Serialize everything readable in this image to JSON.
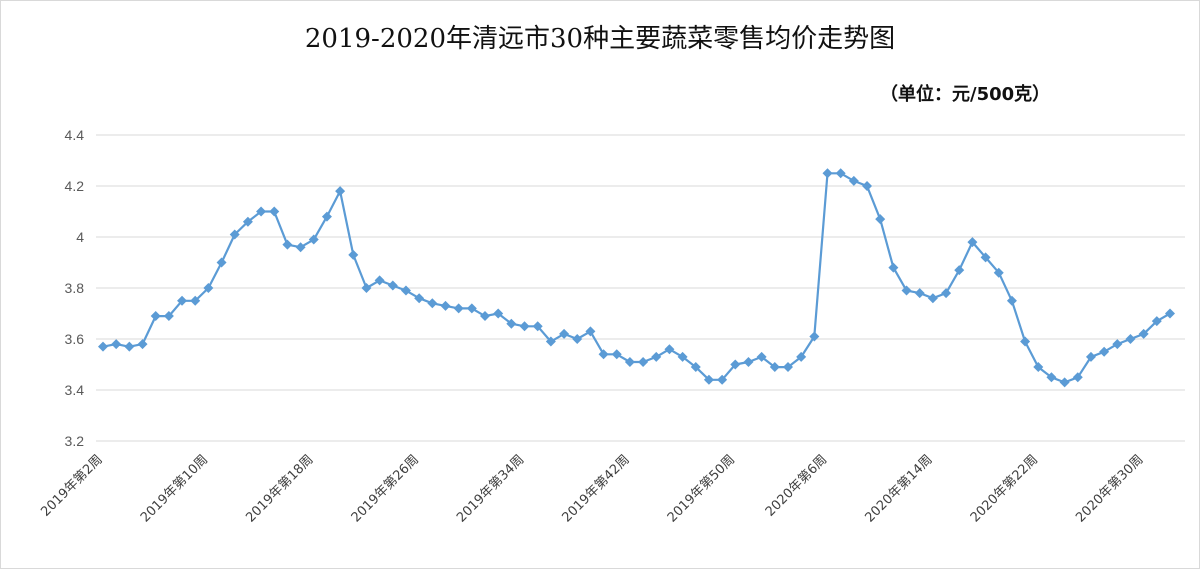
{
  "chart_data": {
    "type": "line",
    "title": "2019-2020年清远市30种主要蔬菜零售均价走势图",
    "unit_label": "（单位：元/500克）",
    "xlabel": "",
    "ylabel": "",
    "ylim": [
      3.2,
      4.4
    ],
    "y_ticks": [
      "3.2",
      "3.4",
      "3.6",
      "3.8",
      "4",
      "4.2",
      "4.4"
    ],
    "x_tick_labels": [
      "2019年第2周",
      "2019年第10周",
      "2019年第18周",
      "2019年第26周",
      "2019年第34周",
      "2019年第42周",
      "2019年第50周",
      "2020年第6周",
      "2020年第14周",
      "2020年第22周",
      "2020年第30周"
    ],
    "x_tick_positions": [
      0,
      8,
      16,
      24,
      32,
      40,
      48,
      55,
      63,
      71,
      79
    ],
    "grid": true,
    "legend": "none",
    "series_color": "#5b9bd5",
    "series": [
      {
        "values": [
          3.57,
          3.58,
          3.57,
          3.58,
          3.69,
          3.69,
          3.75,
          3.75,
          3.8,
          3.9,
          4.01,
          4.06,
          4.1,
          4.1,
          3.97,
          3.96,
          3.99,
          4.08,
          4.18,
          3.93,
          3.8,
          3.83,
          3.81,
          3.79,
          3.76,
          3.74,
          3.73,
          3.72,
          3.72,
          3.69,
          3.7,
          3.66,
          3.65,
          3.65,
          3.59,
          3.62,
          3.6,
          3.63,
          3.54,
          3.54,
          3.51,
          3.51,
          3.53,
          3.56,
          3.53,
          3.49,
          3.44,
          3.44,
          3.5,
          3.51,
          3.53,
          3.49,
          3.49,
          3.53,
          3.61,
          4.25,
          4.25,
          4.22,
          4.2,
          4.07,
          3.88,
          3.79,
          3.78,
          3.76,
          3.78,
          3.87,
          3.98,
          3.92,
          3.86,
          3.75,
          3.59,
          3.49,
          3.45,
          3.43,
          3.45,
          3.53,
          3.55,
          3.58,
          3.6,
          3.62,
          3.67,
          3.7
        ]
      }
    ]
  }
}
